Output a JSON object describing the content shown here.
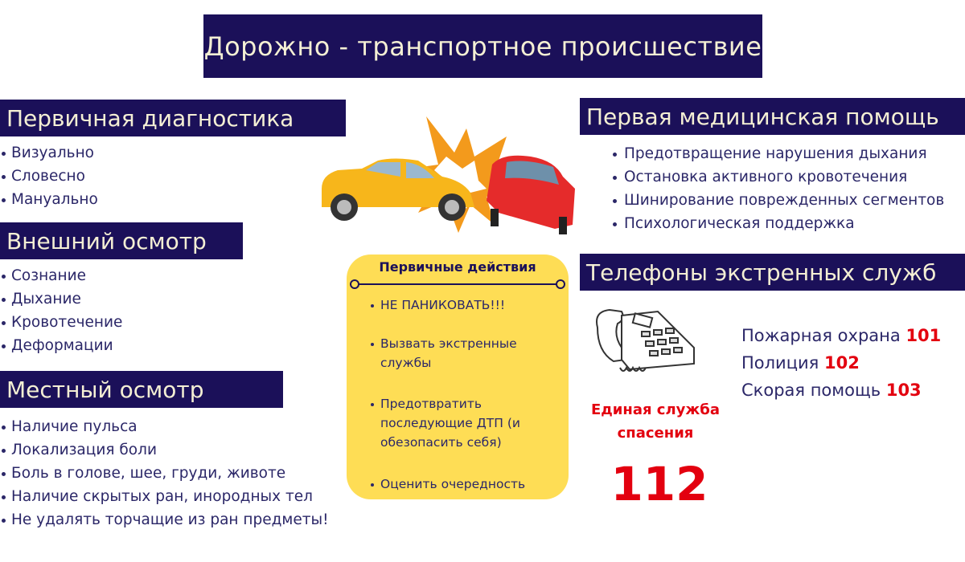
{
  "title": "Дорожно - транспортное происшествие",
  "primary_diagnostics": {
    "heading": "Первичная диагностика",
    "items": [
      "Визуально",
      "Словесно",
      "Мануально"
    ]
  },
  "external_exam": {
    "heading": "Внешний осмотр",
    "items": [
      "Сознание",
      "Дыхание",
      "Кровотечение",
      "Деформации"
    ]
  },
  "local_exam": {
    "heading": "Местный осмотр",
    "items": [
      "Наличие пульса",
      "Локализация боли",
      "Боль в голове, шее, груди, животе",
      "Наличие скрытых ран, инородных тел",
      "Не удалять торчащие из ран предметы!"
    ]
  },
  "first_aid": {
    "heading": "Первая медицинская помощь",
    "items": [
      "Предотвращение нарушения дыхания",
      "Остановка активного кровотечения",
      "Шинирование поврежденных сегментов",
      "Психологическая поддержка"
    ]
  },
  "primary_actions": {
    "heading": "Первичные действия",
    "items": [
      "НЕ ПАНИКОВАТЬ!!!",
      "Вызвать экстренные службы",
      "Предотвратить последующие ДТП (и обезопасить себя)",
      "Оценить очередность"
    ]
  },
  "emergency": {
    "heading": "Телефоны экстренных служб",
    "unified_label": "Единая служба спасения",
    "unified_number": "112",
    "services": [
      {
        "name": "Пожарная охрана",
        "number": "101"
      },
      {
        "name": "Полиция",
        "number": "102"
      },
      {
        "name": "Скорая помощь",
        "number": "103"
      }
    ]
  },
  "colors": {
    "navy": "#1b1059",
    "header_text": "#f4efd4",
    "yellow": "#fedd55",
    "red": "#e3000f",
    "body_text": "#2b2768"
  },
  "icons": [
    "car-crash-illustration",
    "telephone-illustration"
  ]
}
